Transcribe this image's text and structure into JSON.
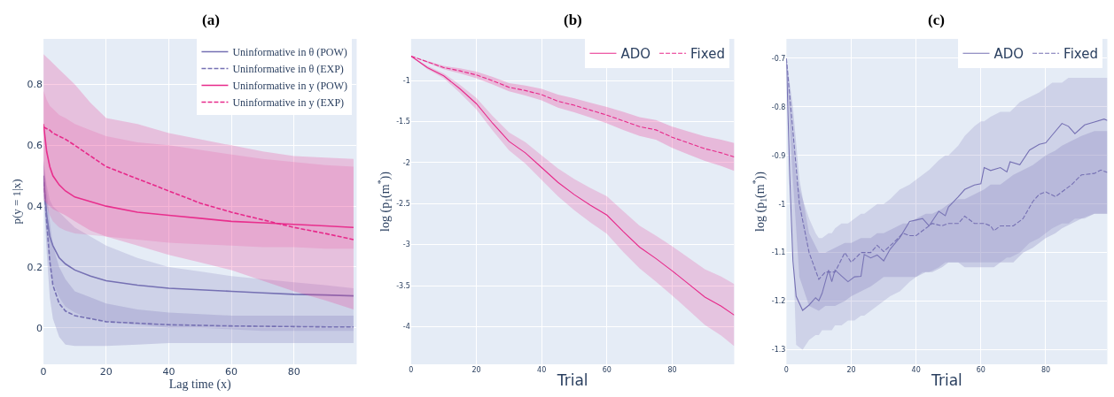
{
  "chart_data": [
    {
      "type": "line",
      "title": "(a)",
      "xlabel": "Lag time (x)",
      "ylabel": "p(y = 1|x)",
      "xlim": [
        0,
        100
      ],
      "ylim": [
        -0.12,
        0.95
      ],
      "xticks": [
        0,
        20,
        40,
        60,
        80
      ],
      "yticks": [
        0,
        0.2,
        0.4,
        0.6,
        0.8
      ],
      "grid": true,
      "legend": "top right",
      "series": [
        {
          "name": "Uninformative in θ (POW)",
          "color": "#7570b3",
          "line_style": "solid",
          "x": [
            0,
            1,
            2,
            3,
            5,
            7,
            10,
            15,
            20,
            30,
            40,
            50,
            60,
            70,
            80,
            90,
            99
          ],
          "values": [
            0.5,
            0.37,
            0.3,
            0.27,
            0.23,
            0.21,
            0.19,
            0.17,
            0.155,
            0.14,
            0.13,
            0.125,
            0.12,
            0.115,
            0.11,
            0.108,
            0.105
          ],
          "upper": [
            0.55,
            0.47,
            0.42,
            0.4,
            0.38,
            0.36,
            0.33,
            0.3,
            0.27,
            0.23,
            0.2,
            0.185,
            0.17,
            0.16,
            0.15,
            0.14,
            0.13
          ],
          "lower": [
            0.45,
            0.3,
            0.2,
            0.15,
            0.1,
            0.07,
            0.05,
            0.03,
            0.02,
            0.01,
            0,
            0,
            -0.005,
            -0.01,
            -0.01,
            -0.01,
            -0.01
          ]
        },
        {
          "name": "Uninformative in θ (EXP)",
          "color": "#7570b3",
          "line_style": "dashed",
          "x": [
            0,
            1,
            2,
            3,
            5,
            7,
            10,
            15,
            20,
            30,
            40,
            50,
            60,
            70,
            80,
            90,
            99
          ],
          "values": [
            0.5,
            0.35,
            0.22,
            0.14,
            0.08,
            0.055,
            0.04,
            0.03,
            0.02,
            0.015,
            0.01,
            0.008,
            0.006,
            0.005,
            0.004,
            0.003,
            0.003
          ],
          "upper": [
            0.55,
            0.45,
            0.35,
            0.27,
            0.2,
            0.16,
            0.12,
            0.1,
            0.08,
            0.06,
            0.05,
            0.045,
            0.04,
            0.04,
            0.04,
            0.04,
            0.04
          ],
          "lower": [
            0.45,
            0.25,
            0.1,
            0.03,
            -0.03,
            -0.055,
            -0.06,
            -0.06,
            -0.06,
            -0.055,
            -0.05,
            -0.05,
            -0.05,
            -0.05,
            -0.05,
            -0.05,
            -0.05
          ]
        },
        {
          "name": "Uninformative in y (POW)",
          "color": "#e7298a",
          "line_style": "solid",
          "x": [
            0,
            1,
            2,
            3,
            5,
            7,
            10,
            15,
            20,
            30,
            40,
            50,
            60,
            70,
            80,
            90,
            99
          ],
          "values": [
            0.67,
            0.58,
            0.53,
            0.5,
            0.47,
            0.45,
            0.43,
            0.415,
            0.4,
            0.38,
            0.37,
            0.36,
            0.35,
            0.345,
            0.34,
            0.335,
            0.33
          ],
          "upper": [
            0.78,
            0.75,
            0.73,
            0.72,
            0.7,
            0.69,
            0.67,
            0.65,
            0.63,
            0.61,
            0.6,
            0.585,
            0.57,
            0.555,
            0.545,
            0.535,
            0.53
          ],
          "lower": [
            0.45,
            0.4,
            0.37,
            0.35,
            0.33,
            0.32,
            0.31,
            0.305,
            0.3,
            0.29,
            0.28,
            0.275,
            0.27,
            0.265,
            0.265,
            0.26,
            0.26
          ]
        },
        {
          "name": "Uninformative in y (EXP)",
          "color": "#e7298a",
          "line_style": "dashed",
          "x": [
            0,
            1,
            2,
            3,
            5,
            7,
            10,
            15,
            20,
            30,
            40,
            50,
            60,
            70,
            80,
            90,
            99
          ],
          "values": [
            0.66,
            0.655,
            0.65,
            0.64,
            0.63,
            0.62,
            0.6,
            0.565,
            0.53,
            0.49,
            0.45,
            0.41,
            0.38,
            0.355,
            0.33,
            0.31,
            0.29
          ],
          "upper": [
            0.9,
            0.89,
            0.88,
            0.87,
            0.85,
            0.83,
            0.8,
            0.74,
            0.69,
            0.67,
            0.64,
            0.62,
            0.6,
            0.58,
            0.565,
            0.56,
            0.555
          ],
          "lower": [
            0.42,
            0.41,
            0.4,
            0.39,
            0.38,
            0.37,
            0.35,
            0.32,
            0.3,
            0.27,
            0.24,
            0.215,
            0.19,
            0.155,
            0.12,
            0.09,
            0.06
          ]
        }
      ]
    },
    {
      "type": "line",
      "title": "(b)",
      "xlabel": "Trial",
      "ylabel": "log (p$_{1}$(m$^{*}$))",
      "xlim": [
        0,
        99
      ],
      "ylim": [
        -4.46,
        -0.49
      ],
      "xticks": [
        0,
        20,
        40,
        60,
        80
      ],
      "yticks": [
        -1,
        -1.5,
        -2,
        -2.5,
        -3,
        -3.5,
        -4
      ],
      "grid": true,
      "legend": "top right",
      "series": [
        {
          "name": "ADO",
          "color": "#e7298a",
          "line_style": "solid",
          "x": [
            0,
            5,
            10,
            15,
            20,
            25,
            30,
            35,
            40,
            45,
            50,
            55,
            60,
            65,
            70,
            75,
            80,
            85,
            90,
            95,
            99
          ],
          "values": [
            -0.7,
            -0.84,
            -0.94,
            -1.1,
            -1.28,
            -1.52,
            -1.74,
            -1.88,
            -2.06,
            -2.24,
            -2.39,
            -2.52,
            -2.64,
            -2.84,
            -3.03,
            -3.17,
            -3.32,
            -3.48,
            -3.64,
            -3.75,
            -3.86
          ],
          "upper": [
            -0.7,
            -0.82,
            -0.91,
            -1.05,
            -1.21,
            -1.43,
            -1.63,
            -1.75,
            -1.91,
            -2.07,
            -2.2,
            -2.31,
            -2.41,
            -2.59,
            -2.77,
            -2.89,
            -3.02,
            -3.16,
            -3.3,
            -3.39,
            -3.48
          ],
          "lower": [
            -0.7,
            -0.86,
            -0.97,
            -1.15,
            -1.35,
            -1.61,
            -1.85,
            -2.01,
            -2.21,
            -2.41,
            -2.58,
            -2.73,
            -2.87,
            -3.09,
            -3.29,
            -3.45,
            -3.62,
            -3.8,
            -3.98,
            -4.11,
            -4.24
          ]
        },
        {
          "name": "Fixed",
          "color": "#e7298a",
          "line_style": "dashed",
          "x": [
            0,
            5,
            10,
            15,
            20,
            25,
            30,
            35,
            40,
            45,
            50,
            55,
            60,
            65,
            70,
            75,
            80,
            85,
            90,
            95,
            99
          ],
          "values": [
            -0.7,
            -0.77,
            -0.84,
            -0.88,
            -0.93,
            -1.0,
            -1.08,
            -1.12,
            -1.17,
            -1.25,
            -1.3,
            -1.36,
            -1.42,
            -1.49,
            -1.56,
            -1.6,
            -1.69,
            -1.76,
            -1.83,
            -1.88,
            -1.93
          ],
          "upper": [
            -0.7,
            -0.76,
            -0.82,
            -0.85,
            -0.89,
            -0.955,
            -1.03,
            -1.06,
            -1.1,
            -1.17,
            -1.215,
            -1.27,
            -1.32,
            -1.38,
            -1.445,
            -1.48,
            -1.56,
            -1.62,
            -1.68,
            -1.72,
            -1.76
          ],
          "lower": [
            -0.7,
            -0.78,
            -0.86,
            -0.91,
            -0.97,
            -1.045,
            -1.13,
            -1.18,
            -1.24,
            -1.33,
            -1.385,
            -1.45,
            -1.52,
            -1.6,
            -1.675,
            -1.72,
            -1.82,
            -1.9,
            -1.98,
            -2.04,
            -2.1
          ]
        }
      ]
    },
    {
      "type": "line",
      "title": "(c)",
      "xlabel": "Trial",
      "ylabel": "log (p$_{1}$(m$^{*}$))",
      "xlim": [
        0,
        99
      ],
      "ylim": [
        -1.33,
        -0.66
      ],
      "xticks": [
        0,
        20,
        40,
        60,
        80
      ],
      "yticks": [
        -0.7,
        -0.8,
        -0.9,
        -1,
        -1.1,
        -1.2,
        -1.3
      ],
      "grid": true,
      "legend": "top right",
      "series": [
        {
          "name": "ADO",
          "color": "#7570b3",
          "line_style": "solid",
          "x": [
            0,
            1,
            2,
            3,
            5,
            7,
            9,
            10,
            11,
            13,
            14,
            15,
            17,
            19,
            21,
            23,
            24,
            26,
            28,
            30,
            32,
            35,
            38,
            40,
            42,
            44,
            47,
            49,
            50,
            53,
            55,
            58,
            60,
            61,
            63,
            66,
            68,
            69,
            72,
            75,
            78,
            80,
            82,
            85,
            87,
            89,
            92,
            95,
            98,
            99
          ],
          "values": [
            -0.7,
            -0.937,
            -1.117,
            -1.19,
            -1.219,
            -1.208,
            -1.193,
            -1.199,
            -1.184,
            -1.136,
            -1.16,
            -1.136,
            -1.148,
            -1.16,
            -1.15,
            -1.149,
            -1.104,
            -1.111,
            -1.105,
            -1.117,
            -1.093,
            -1.069,
            -1.036,
            -1.033,
            -1.03,
            -1.045,
            -1.015,
            -1.024,
            -1.006,
            -0.985,
            -0.97,
            -0.961,
            -0.958,
            -0.925,
            -0.931,
            -0.925,
            -0.934,
            -0.913,
            -0.919,
            -0.889,
            -0.877,
            -0.874,
            -0.858,
            -0.834,
            -0.84,
            -0.855,
            -0.837,
            -0.831,
            -0.825,
            -0.828
          ],
          "upper": [
            -0.7,
            -0.78,
            -0.87,
            -0.95,
            -0.99,
            -1.03,
            -1.06,
            -1.07,
            -1.07,
            -1.06,
            -1.06,
            -1.05,
            -1.04,
            -1.04,
            -1.03,
            -1.02,
            -1.02,
            -1.01,
            -1.0,
            -1.0,
            -0.99,
            -0.97,
            -0.96,
            -0.95,
            -0.94,
            -0.93,
            -0.91,
            -0.9,
            -0.9,
            -0.88,
            -0.86,
            -0.84,
            -0.83,
            -0.83,
            -0.82,
            -0.81,
            -0.81,
            -0.81,
            -0.79,
            -0.78,
            -0.77,
            -0.76,
            -0.75,
            -0.75,
            -0.74,
            -0.74,
            -0.74,
            -0.74,
            -0.74,
            -0.74
          ],
          "lower": [
            -0.7,
            -0.89,
            -1.09,
            -1.29,
            -1.3,
            -1.28,
            -1.27,
            -1.27,
            -1.26,
            -1.26,
            -1.26,
            -1.25,
            -1.25,
            -1.24,
            -1.24,
            -1.23,
            -1.23,
            -1.22,
            -1.21,
            -1.2,
            -1.19,
            -1.18,
            -1.16,
            -1.15,
            -1.14,
            -1.14,
            -1.13,
            -1.12,
            -1.12,
            -1.12,
            -1.12,
            -1.12,
            -1.12,
            -1.12,
            -1.12,
            -1.12,
            -1.11,
            -1.11,
            -1.1,
            -1.08,
            -1.07,
            -1.06,
            -1.05,
            -1.04,
            -1.04,
            -1.03,
            -1.03,
            -1.02,
            -1.02,
            -1.02
          ]
        },
        {
          "name": "Fixed",
          "color": "#7570b3",
          "line_style": "dashed",
          "x": [
            0,
            2,
            4,
            7,
            10,
            12,
            15,
            18,
            20,
            23,
            26,
            28,
            30,
            33,
            36,
            38,
            40,
            43,
            45,
            48,
            50,
            53,
            55,
            58,
            61,
            63,
            64,
            66,
            70,
            73,
            76,
            78,
            80,
            83,
            85,
            88,
            91,
            95,
            97,
            99
          ],
          "values": [
            -0.7,
            -0.85,
            -1.0,
            -1.1,
            -1.155,
            -1.14,
            -1.14,
            -1.1,
            -1.12,
            -1.1,
            -1.1,
            -1.085,
            -1.098,
            -1.08,
            -1.06,
            -1.065,
            -1.065,
            -1.05,
            -1.04,
            -1.045,
            -1.04,
            -1.04,
            -1.025,
            -1.04,
            -1.04,
            -1.045,
            -1.055,
            -1.045,
            -1.045,
            -1.03,
            -0.995,
            -0.98,
            -0.975,
            -0.985,
            -0.975,
            -0.96,
            -0.94,
            -0.937,
            -0.93,
            -0.935
          ],
          "upper": [
            -0.7,
            -0.8,
            -0.95,
            -1.06,
            -1.1,
            -1.1,
            -1.09,
            -1.08,
            -1.08,
            -1.07,
            -1.07,
            -1.06,
            -1.06,
            -1.05,
            -1.04,
            -1.04,
            -1.03,
            -1.02,
            -1.02,
            -1.01,
            -1.0,
            -0.99,
            -0.99,
            -0.98,
            -0.97,
            -0.96,
            -0.96,
            -0.96,
            -0.94,
            -0.93,
            -0.92,
            -0.91,
            -0.9,
            -0.89,
            -0.88,
            -0.87,
            -0.86,
            -0.85,
            -0.85,
            -0.85
          ],
          "lower": [
            -0.7,
            -0.95,
            -1.15,
            -1.21,
            -1.22,
            -1.21,
            -1.21,
            -1.2,
            -1.19,
            -1.18,
            -1.17,
            -1.16,
            -1.15,
            -1.15,
            -1.15,
            -1.15,
            -1.15,
            -1.14,
            -1.14,
            -1.13,
            -1.12,
            -1.12,
            -1.13,
            -1.13,
            -1.13,
            -1.13,
            -1.13,
            -1.12,
            -1.12,
            -1.1,
            -1.09,
            -1.08,
            -1.07,
            -1.06,
            -1.05,
            -1.04,
            -1.03,
            -1.02,
            -1.02,
            -1.02
          ]
        }
      ]
    }
  ]
}
